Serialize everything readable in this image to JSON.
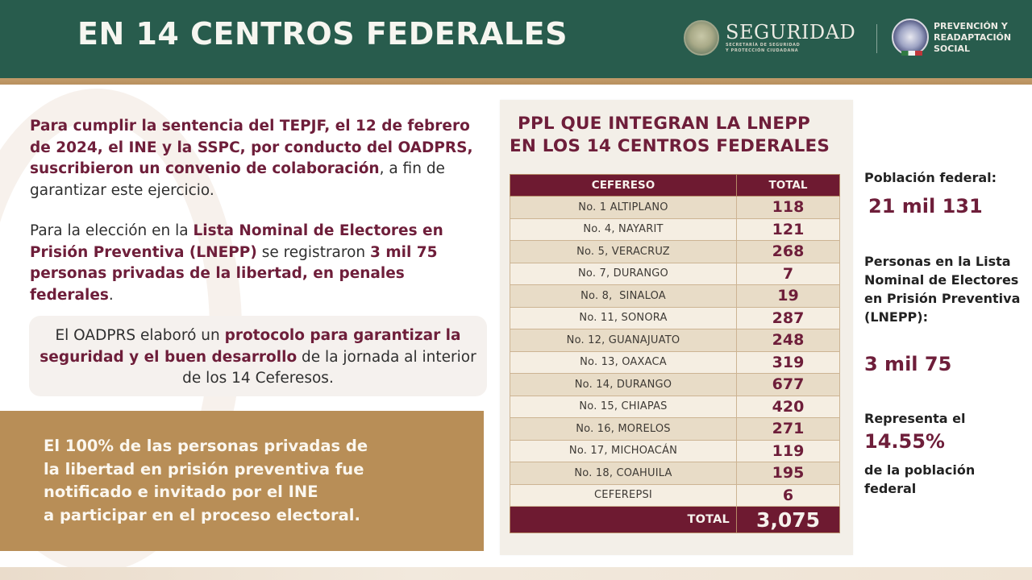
{
  "header": {
    "title": "EN 14 CENTROS FEDERALES",
    "logo_seguridad": {
      "name": "SEGURIDAD",
      "subtitle_line1": "SECRETARÍA DE SEGURIDAD",
      "subtitle_line2": "Y PROTECCIÓN CIUDADANA"
    },
    "logo_prs": {
      "line1": "PREVENCIÓN Y",
      "line2": "READAPTACIÓN",
      "line3": "SOCIAL"
    }
  },
  "left": {
    "p1": {
      "bold": "Para cumplir la sentencia del TEPJF, el 12 de febrero de 2024, el INE y la SSPC, por conducto del OADPRS, suscribieron un convenio de colaboración",
      "normal": ", a fin de garantizar este ejercicio."
    },
    "p2": {
      "normal1": "Para la elección en la ",
      "bold1": "Lista Nominal de Electores en Prisión Preventiva (LNEPP)",
      "normal2": " se registraron ",
      "bold2": "3 mil 75 personas privadas de la libertad, en penales federales",
      "normal3": "."
    },
    "protocol": {
      "normal1": "El OADPRS elaboró un ",
      "bold": "protocolo para garantizar la seguridad y el buen desarrollo",
      "normal2": " de la jornada al interior de los 14 Ceferesos."
    },
    "gold_box": {
      "line1": "El 100% de las personas privadas de",
      "line2": "la libertad en prisión preventiva fue",
      "line3": "notificado e invitado por el INE",
      "line4": "a participar en el proceso electoral."
    }
  },
  "table": {
    "title_line1": "PPL QUE INTEGRAN LA LNEPP",
    "title_line2": "EN LOS 14 CENTROS FEDERALES",
    "columns": [
      "CEFERESO",
      "TOTAL"
    ],
    "rows": [
      {
        "name": "No. 1 ALTIPLANO",
        "total": "118"
      },
      {
        "name": "No. 4, NAYARIT",
        "total": "121"
      },
      {
        "name": "No. 5, VERACRUZ",
        "total": "268"
      },
      {
        "name": "No. 7, DURANGO",
        "total": "7"
      },
      {
        "name": "No. 8,  SINALOA",
        "total": "19"
      },
      {
        "name": "No. 11, SONORA",
        "total": "287"
      },
      {
        "name": "No. 12, GUANAJUATO",
        "total": "248"
      },
      {
        "name": "No. 13, OAXACA",
        "total": "319"
      },
      {
        "name": "No. 14, DURANGO",
        "total": "677"
      },
      {
        "name": "No. 15, CHIAPAS",
        "total": "420"
      },
      {
        "name": "No. 16, MORELOS",
        "total": "271"
      },
      {
        "name": "No. 17, MICHOACÁN",
        "total": "119"
      },
      {
        "name": "No. 18, COAHUILA",
        "total": "195"
      },
      {
        "name": "CEFEREPSI",
        "total": "6"
      }
    ],
    "total_label": "TOTAL",
    "total_value": "3,075"
  },
  "side": {
    "poblacion_label": "Población federal:",
    "poblacion_value": "21 mil 131",
    "lnepp_label": "Personas en la Lista Nominal de Electores en Prisión Preventiva (LNEPP):",
    "lnepp_value": "3 mil 75",
    "representa_label": "Representa el",
    "representa_value": "14.55%",
    "representa_tail": "de la población federal"
  },
  "colors": {
    "header_green": "#285c4d",
    "gold": "#b88e57",
    "maroon": "#6e1a31",
    "table_odd": "#e8dcc7",
    "table_even": "#f5eee2"
  }
}
